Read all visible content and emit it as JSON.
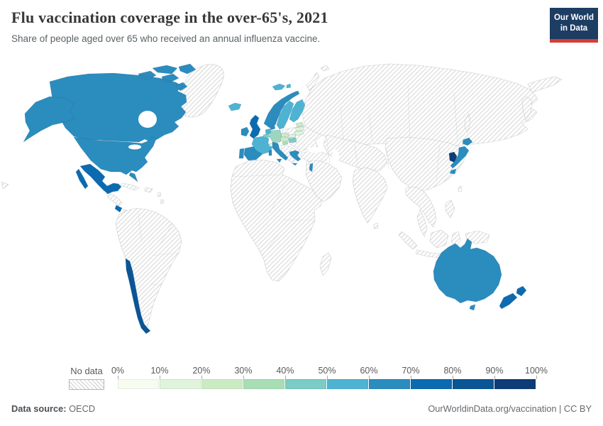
{
  "header": {
    "title": "Flu vaccination coverage in the over-65's, 2021",
    "subtitle": "Share of people aged over 65 who received an annual influenza vaccine.",
    "logo": {
      "line1": "Our World",
      "line2": "in Data",
      "bg": "#1d3d63",
      "accent": "#d73c34"
    }
  },
  "legend": {
    "no_data_label": "No data",
    "ticks": [
      "0%",
      "10%",
      "20%",
      "30%",
      "40%",
      "50%",
      "60%",
      "70%",
      "80%",
      "90%",
      "100%"
    ],
    "colors": [
      "#f7fcf0",
      "#e0f3db",
      "#ccebc5",
      "#a8ddb5",
      "#7bccc4",
      "#4eb3d3",
      "#2b8cbe",
      "#0c6bb0",
      "#0a5596",
      "#0d3c76"
    ]
  },
  "map": {
    "ocean_color": "#ffffff",
    "no_data_hatch_color": "#d4d4d4",
    "border_color": "#c7ccd1",
    "regions": [
      {
        "id": "canada",
        "name": "Canada",
        "color": "#2b8cbe",
        "band": "60-70%"
      },
      {
        "id": "united-states",
        "name": "United States",
        "color": "#2b8cbe",
        "band": "60-70%"
      },
      {
        "id": "mexico",
        "name": "Mexico",
        "color": "#0c6bb0",
        "band": "70-80%"
      },
      {
        "id": "costa-rica",
        "name": "Costa Rica",
        "color": "#0c6bb0",
        "band": "70-80%"
      },
      {
        "id": "chile",
        "name": "Chile",
        "color": "#0a5596",
        "band": "80-90%"
      },
      {
        "id": "iceland",
        "name": "Iceland",
        "color": "#4eb3d3",
        "band": "50-60%"
      },
      {
        "id": "ireland",
        "name": "Ireland",
        "color": "#2b8cbe",
        "band": "60-70%"
      },
      {
        "id": "united-kingdom",
        "name": "United Kingdom",
        "color": "#0c6bb0",
        "band": "70-80%"
      },
      {
        "id": "portugal",
        "name": "Portugal",
        "color": "#2b8cbe",
        "band": "60-70%"
      },
      {
        "id": "spain",
        "name": "Spain",
        "color": "#2b8cbe",
        "band": "60-70%"
      },
      {
        "id": "france",
        "name": "France",
        "color": "#4eb3d3",
        "band": "50-60%"
      },
      {
        "id": "belgium",
        "name": "Belgium",
        "color": "#7bccc4",
        "band": "40-50%"
      },
      {
        "id": "netherlands",
        "name": "Netherlands",
        "color": "#4eb3d3",
        "band": "50-60%"
      },
      {
        "id": "germany",
        "name": "Germany",
        "color": "#9bd6c0",
        "band": "40-50%"
      },
      {
        "id": "switzerland",
        "name": "Switzerland",
        "color": "#e0f3db",
        "band": "10-20%"
      },
      {
        "id": "austria",
        "name": "Austria",
        "color": "#ccebc5",
        "band": "20-30%"
      },
      {
        "id": "czechia",
        "name": "Czechia",
        "color": "#ccebc5",
        "band": "20-30%"
      },
      {
        "id": "slovakia",
        "name": "Slovakia",
        "color": "#e0f3db",
        "band": "10-20%"
      },
      {
        "id": "hungary",
        "name": "Hungary",
        "color": "#7bccc4",
        "band": "40-50%"
      },
      {
        "id": "slovenia",
        "name": "Slovenia",
        "color": "#a8ddb5",
        "band": "30-40%"
      },
      {
        "id": "italy",
        "name": "Italy",
        "color": "#2b8cbe",
        "band": "60-70%"
      },
      {
        "id": "greece",
        "name": "Greece",
        "color": "#2b8cbe",
        "band": "60-70%"
      },
      {
        "id": "denmark",
        "name": "Denmark",
        "color": "#2b8cbe",
        "band": "60-70%"
      },
      {
        "id": "norway",
        "name": "Norway",
        "color": "#2b8cbe",
        "band": "60-70%"
      },
      {
        "id": "svalbard",
        "name": "Svalbard (Norway)",
        "color": "#4eb3d3",
        "band": "50-60%"
      },
      {
        "id": "sweden",
        "name": "Sweden",
        "color": "#4eb3d3",
        "band": "50-60%"
      },
      {
        "id": "finland",
        "name": "Finland",
        "color": "#4eb3d3",
        "band": "50-60%"
      },
      {
        "id": "estonia",
        "name": "Estonia",
        "color": "#ccebc5",
        "band": "20-30%"
      },
      {
        "id": "latvia",
        "name": "Latvia",
        "color": "#e0f3db",
        "band": "10-20%"
      },
      {
        "id": "lithuania",
        "name": "Lithuania",
        "color": "#e0f3db",
        "band": "10-20%"
      },
      {
        "id": "israel",
        "name": "Israel",
        "color": "#2b8cbe",
        "band": "60-70%"
      },
      {
        "id": "south-korea",
        "name": "South Korea",
        "color": "#0d3c76",
        "band": "90-100%"
      },
      {
        "id": "japan",
        "name": "Japan",
        "color": "#2b8cbe",
        "band": "60-70%"
      },
      {
        "id": "australia",
        "name": "Australia",
        "color": "#2b8cbe",
        "band": "60-70%"
      },
      {
        "id": "new-zealand",
        "name": "New Zealand",
        "color": "#0c6bb0",
        "band": "70-80%"
      }
    ]
  },
  "footer": {
    "source_label": "Data source:",
    "source_value": " OECD",
    "right_text": "OurWorldinData.org/vaccination | CC BY"
  }
}
